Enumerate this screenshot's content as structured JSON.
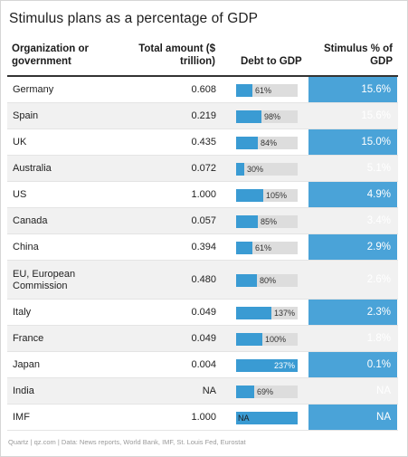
{
  "title": "Stimulus plans as a percentage of GDP",
  "columns": {
    "org": "Organization or government",
    "total": "Total amount ($ trillion)",
    "debt": "Debt to GDP",
    "stimulus": "Stimulus % of GDP"
  },
  "colors": {
    "stimulus_column": "#4aa3d8",
    "bar": "#3a9bd3",
    "bar_track": "#dddddd"
  },
  "rows": [
    {
      "name": "Germany",
      "total": "0.608",
      "debt_label": "61%",
      "debt_pct": 61,
      "stimulus": "15.6%"
    },
    {
      "name": "Spain",
      "total": "0.219",
      "debt_label": "98%",
      "debt_pct": 98,
      "stimulus": "15.6%"
    },
    {
      "name": "UK",
      "total": "0.435",
      "debt_label": "84%",
      "debt_pct": 84,
      "stimulus": "15.0%"
    },
    {
      "name": "Australia",
      "total": "0.072",
      "debt_label": "30%",
      "debt_pct": 30,
      "stimulus": "5.1%"
    },
    {
      "name": "US",
      "total": "1.000",
      "debt_label": "105%",
      "debt_pct": 105,
      "stimulus": "4.9%"
    },
    {
      "name": "Canada",
      "total": "0.057",
      "debt_label": "85%",
      "debt_pct": 85,
      "stimulus": "3.4%"
    },
    {
      "name": "China",
      "total": "0.394",
      "debt_label": "61%",
      "debt_pct": 61,
      "stimulus": "2.9%"
    },
    {
      "name": "EU, European Commission",
      "total": "0.480",
      "debt_label": "80%",
      "debt_pct": 80,
      "stimulus": "2.6%"
    },
    {
      "name": "Italy",
      "total": "0.049",
      "debt_label": "137%",
      "debt_pct": 137,
      "stimulus": "2.3%"
    },
    {
      "name": "France",
      "total": "0.049",
      "debt_label": "100%",
      "debt_pct": 100,
      "stimulus": "1.8%"
    },
    {
      "name": "Japan",
      "total": "0.004",
      "debt_label": "237%",
      "debt_pct": 237,
      "stimulus": "0.1%"
    },
    {
      "name": "India",
      "total": "NA",
      "debt_label": "69%",
      "debt_pct": 69,
      "stimulus": "NA"
    },
    {
      "name": "IMF",
      "total": "1.000",
      "debt_label": "NA",
      "debt_pct": null,
      "stimulus": "NA"
    }
  ],
  "footer": "Quartz | qz.com | Data: News reports, World Bank, IMF, St. Louis Fed, Eurostat"
}
